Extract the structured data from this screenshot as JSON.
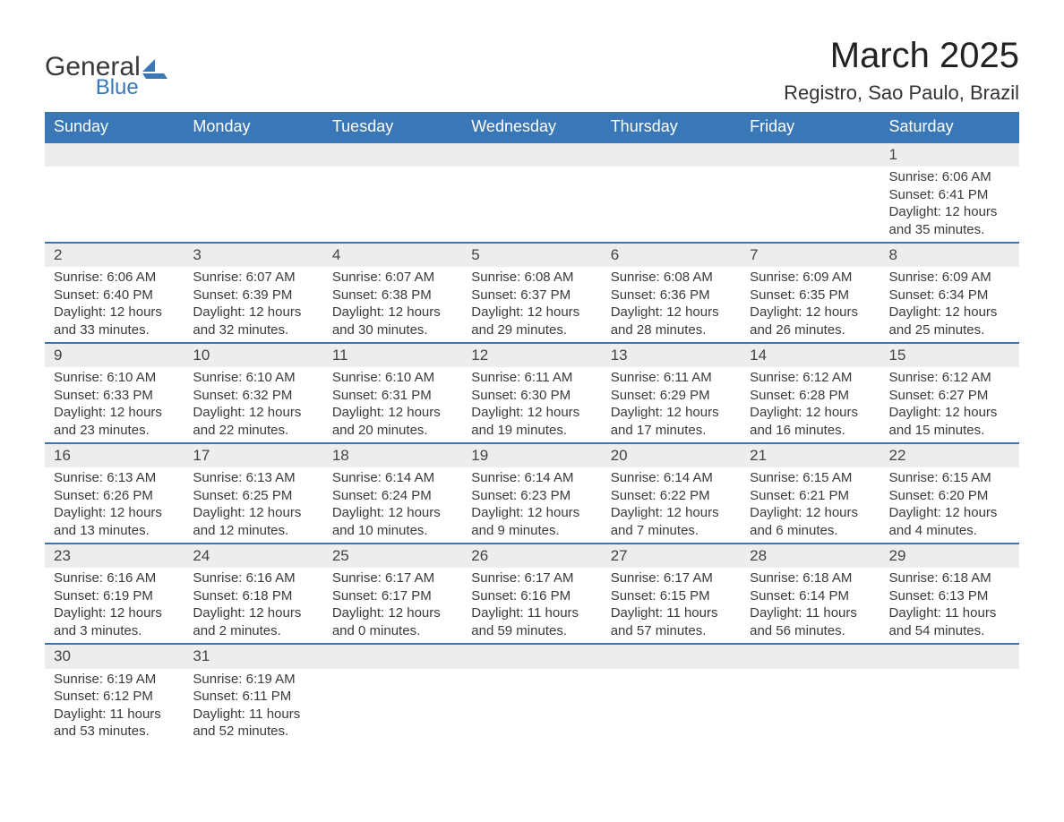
{
  "logo": {
    "text1": "General",
    "text2": "Blue"
  },
  "title": "March 2025",
  "location": "Registro, Sao Paulo, Brazil",
  "colors": {
    "header_bg": "#3a77b6",
    "header_text": "#ffffff",
    "daynum_bg": "#ededed",
    "body_text": "#3a3a3a",
    "border": "#3a77b6"
  },
  "weekdays": [
    "Sunday",
    "Monday",
    "Tuesday",
    "Wednesday",
    "Thursday",
    "Friday",
    "Saturday"
  ],
  "weeks": [
    [
      null,
      null,
      null,
      null,
      null,
      null,
      {
        "n": "1",
        "sr": "Sunrise: 6:06 AM",
        "ss": "Sunset: 6:41 PM",
        "d1": "Daylight: 12 hours",
        "d2": "and 35 minutes."
      }
    ],
    [
      {
        "n": "2",
        "sr": "Sunrise: 6:06 AM",
        "ss": "Sunset: 6:40 PM",
        "d1": "Daylight: 12 hours",
        "d2": "and 33 minutes."
      },
      {
        "n": "3",
        "sr": "Sunrise: 6:07 AM",
        "ss": "Sunset: 6:39 PM",
        "d1": "Daylight: 12 hours",
        "d2": "and 32 minutes."
      },
      {
        "n": "4",
        "sr": "Sunrise: 6:07 AM",
        "ss": "Sunset: 6:38 PM",
        "d1": "Daylight: 12 hours",
        "d2": "and 30 minutes."
      },
      {
        "n": "5",
        "sr": "Sunrise: 6:08 AM",
        "ss": "Sunset: 6:37 PM",
        "d1": "Daylight: 12 hours",
        "d2": "and 29 minutes."
      },
      {
        "n": "6",
        "sr": "Sunrise: 6:08 AM",
        "ss": "Sunset: 6:36 PM",
        "d1": "Daylight: 12 hours",
        "d2": "and 28 minutes."
      },
      {
        "n": "7",
        "sr": "Sunrise: 6:09 AM",
        "ss": "Sunset: 6:35 PM",
        "d1": "Daylight: 12 hours",
        "d2": "and 26 minutes."
      },
      {
        "n": "8",
        "sr": "Sunrise: 6:09 AM",
        "ss": "Sunset: 6:34 PM",
        "d1": "Daylight: 12 hours",
        "d2": "and 25 minutes."
      }
    ],
    [
      {
        "n": "9",
        "sr": "Sunrise: 6:10 AM",
        "ss": "Sunset: 6:33 PM",
        "d1": "Daylight: 12 hours",
        "d2": "and 23 minutes."
      },
      {
        "n": "10",
        "sr": "Sunrise: 6:10 AM",
        "ss": "Sunset: 6:32 PM",
        "d1": "Daylight: 12 hours",
        "d2": "and 22 minutes."
      },
      {
        "n": "11",
        "sr": "Sunrise: 6:10 AM",
        "ss": "Sunset: 6:31 PM",
        "d1": "Daylight: 12 hours",
        "d2": "and 20 minutes."
      },
      {
        "n": "12",
        "sr": "Sunrise: 6:11 AM",
        "ss": "Sunset: 6:30 PM",
        "d1": "Daylight: 12 hours",
        "d2": "and 19 minutes."
      },
      {
        "n": "13",
        "sr": "Sunrise: 6:11 AM",
        "ss": "Sunset: 6:29 PM",
        "d1": "Daylight: 12 hours",
        "d2": "and 17 minutes."
      },
      {
        "n": "14",
        "sr": "Sunrise: 6:12 AM",
        "ss": "Sunset: 6:28 PM",
        "d1": "Daylight: 12 hours",
        "d2": "and 16 minutes."
      },
      {
        "n": "15",
        "sr": "Sunrise: 6:12 AM",
        "ss": "Sunset: 6:27 PM",
        "d1": "Daylight: 12 hours",
        "d2": "and 15 minutes."
      }
    ],
    [
      {
        "n": "16",
        "sr": "Sunrise: 6:13 AM",
        "ss": "Sunset: 6:26 PM",
        "d1": "Daylight: 12 hours",
        "d2": "and 13 minutes."
      },
      {
        "n": "17",
        "sr": "Sunrise: 6:13 AM",
        "ss": "Sunset: 6:25 PM",
        "d1": "Daylight: 12 hours",
        "d2": "and 12 minutes."
      },
      {
        "n": "18",
        "sr": "Sunrise: 6:14 AM",
        "ss": "Sunset: 6:24 PM",
        "d1": "Daylight: 12 hours",
        "d2": "and 10 minutes."
      },
      {
        "n": "19",
        "sr": "Sunrise: 6:14 AM",
        "ss": "Sunset: 6:23 PM",
        "d1": "Daylight: 12 hours",
        "d2": "and 9 minutes."
      },
      {
        "n": "20",
        "sr": "Sunrise: 6:14 AM",
        "ss": "Sunset: 6:22 PM",
        "d1": "Daylight: 12 hours",
        "d2": "and 7 minutes."
      },
      {
        "n": "21",
        "sr": "Sunrise: 6:15 AM",
        "ss": "Sunset: 6:21 PM",
        "d1": "Daylight: 12 hours",
        "d2": "and 6 minutes."
      },
      {
        "n": "22",
        "sr": "Sunrise: 6:15 AM",
        "ss": "Sunset: 6:20 PM",
        "d1": "Daylight: 12 hours",
        "d2": "and 4 minutes."
      }
    ],
    [
      {
        "n": "23",
        "sr": "Sunrise: 6:16 AM",
        "ss": "Sunset: 6:19 PM",
        "d1": "Daylight: 12 hours",
        "d2": "and 3 minutes."
      },
      {
        "n": "24",
        "sr": "Sunrise: 6:16 AM",
        "ss": "Sunset: 6:18 PM",
        "d1": "Daylight: 12 hours",
        "d2": "and 2 minutes."
      },
      {
        "n": "25",
        "sr": "Sunrise: 6:17 AM",
        "ss": "Sunset: 6:17 PM",
        "d1": "Daylight: 12 hours",
        "d2": "and 0 minutes."
      },
      {
        "n": "26",
        "sr": "Sunrise: 6:17 AM",
        "ss": "Sunset: 6:16 PM",
        "d1": "Daylight: 11 hours",
        "d2": "and 59 minutes."
      },
      {
        "n": "27",
        "sr": "Sunrise: 6:17 AM",
        "ss": "Sunset: 6:15 PM",
        "d1": "Daylight: 11 hours",
        "d2": "and 57 minutes."
      },
      {
        "n": "28",
        "sr": "Sunrise: 6:18 AM",
        "ss": "Sunset: 6:14 PM",
        "d1": "Daylight: 11 hours",
        "d2": "and 56 minutes."
      },
      {
        "n": "29",
        "sr": "Sunrise: 6:18 AM",
        "ss": "Sunset: 6:13 PM",
        "d1": "Daylight: 11 hours",
        "d2": "and 54 minutes."
      }
    ],
    [
      {
        "n": "30",
        "sr": "Sunrise: 6:19 AM",
        "ss": "Sunset: 6:12 PM",
        "d1": "Daylight: 11 hours",
        "d2": "and 53 minutes."
      },
      {
        "n": "31",
        "sr": "Sunrise: 6:19 AM",
        "ss": "Sunset: 6:11 PM",
        "d1": "Daylight: 11 hours",
        "d2": "and 52 minutes."
      },
      null,
      null,
      null,
      null,
      null
    ]
  ]
}
